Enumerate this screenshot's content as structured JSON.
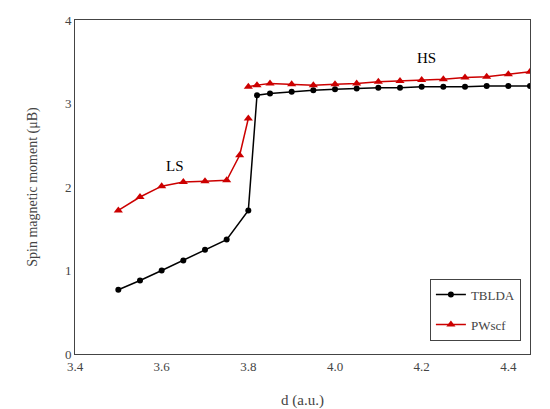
{
  "chart_data": {
    "type": "line",
    "xlabel": "d (a.u.)",
    "ylabel": "Spin magnetic moment (μB)",
    "xlim": [
      3.4,
      4.45
    ],
    "ylim": [
      0,
      4
    ],
    "xticks": [
      3.4,
      3.6,
      3.8,
      {
        "value": 4.0,
        "label": "4.0"
      },
      4.2,
      4.4
    ],
    "yticks": [
      0,
      1,
      2,
      3,
      4
    ],
    "grid": false,
    "legend": "lower right",
    "series": [
      {
        "name": "TBLDA",
        "color": "#000000",
        "marker": "circle",
        "line_style": "solid",
        "x": [
          3.5,
          3.55,
          3.6,
          3.65,
          3.7,
          3.75,
          3.8,
          3.82,
          3.85,
          3.9,
          3.95,
          4.0,
          4.05,
          4.1,
          4.15,
          4.2,
          4.25,
          4.3,
          4.35,
          4.4,
          4.45
        ],
        "values": [
          0.77,
          0.88,
          1.0,
          1.12,
          1.25,
          1.37,
          1.72,
          3.1,
          3.12,
          3.14,
          3.16,
          3.17,
          3.18,
          3.19,
          3.19,
          3.2,
          3.2,
          3.2,
          3.21,
          3.21,
          3.21
        ]
      },
      {
        "name": "PWscf",
        "color": "#cc0000",
        "marker": "triangle-up",
        "line_style": "solid",
        "x": [
          3.5,
          3.55,
          3.6,
          3.65,
          3.7,
          3.75,
          3.78,
          3.8
        ],
        "values": [
          1.72,
          1.88,
          2.01,
          2.06,
          2.07,
          2.08,
          2.38,
          2.82
        ]
      },
      {
        "name": "PWscf",
        "color": "#cc0000",
        "marker": "triangle-up",
        "line_style": "solid",
        "x": [
          3.8,
          3.82,
          3.85,
          3.9,
          3.95,
          4.0,
          4.05,
          4.1,
          4.15,
          4.2,
          4.25,
          4.3,
          4.35,
          4.4,
          4.45
        ],
        "values": [
          3.2,
          3.22,
          3.24,
          3.23,
          3.22,
          3.23,
          3.24,
          3.26,
          3.27,
          3.28,
          3.29,
          3.31,
          3.32,
          3.35,
          3.38
        ]
      }
    ],
    "annotations": [
      {
        "text": "LS",
        "x": 3.605,
        "y": 2.13
      },
      {
        "text": "HS",
        "x": 4.185,
        "y": 3.42
      }
    ]
  }
}
